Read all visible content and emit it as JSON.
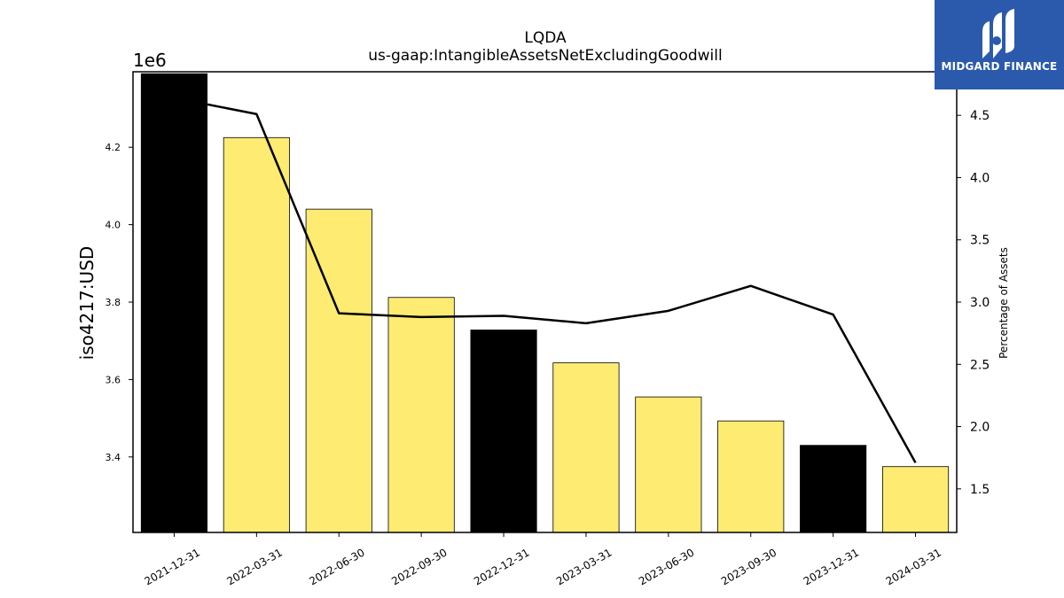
{
  "chart_data": {
    "type": "bar",
    "title": "LQDA",
    "subtitle": "us-gaap:IntangibleAssetsNetExcludingGoodwill",
    "ylabel": "iso4217:USD",
    "y_offset_label": "1e6",
    "y2label": "Percentage of Assets",
    "categories": [
      "2021-12-31",
      "2022-03-31",
      "2022-06-30",
      "2022-09-30",
      "2022-12-31",
      "2023-03-31",
      "2023-06-30",
      "2023-09-30",
      "2023-12-31",
      "2024-03-31"
    ],
    "series": [
      {
        "values": [
          4390000,
          4225000,
          4040000,
          3812000,
          3728000,
          3643000,
          3555000,
          3493000,
          3430000,
          3375000
        ],
        "colors": [
          "#000000",
          "#fdeb72",
          "#fdeb72",
          "#fdeb72",
          "#000000",
          "#fdeb72",
          "#fdeb72",
          "#fdeb72",
          "#000000",
          "#fdeb72"
        ]
      },
      {
        "type": "line",
        "axis": "right",
        "values": [
          4.64,
          4.51,
          2.91,
          2.88,
          2.89,
          2.83,
          2.93,
          3.13,
          2.9,
          1.71
        ],
        "color": "#000000"
      }
    ],
    "ylim": [
      3.205,
      4.395
    ],
    "yticks": [
      3.4,
      3.6,
      3.8,
      4.0,
      4.2
    ],
    "y2lim": [
      1.15,
      4.85
    ],
    "y2ticks": [
      1.5,
      2.0,
      2.5,
      3.0,
      3.5,
      4.0,
      4.5
    ],
    "grid": false,
    "legend": "none"
  },
  "logo": {
    "text": "MIDGARD FINANCE",
    "color": "#2b5aad"
  }
}
